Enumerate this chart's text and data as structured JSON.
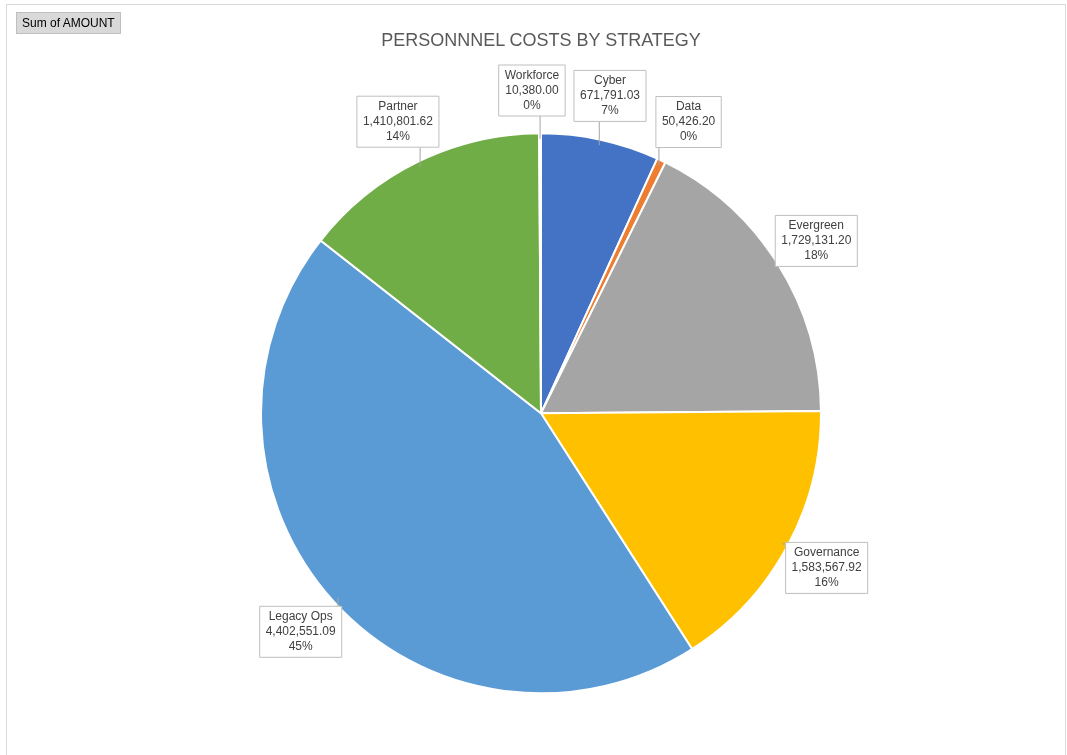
{
  "chart_data": {
    "type": "pie",
    "title": "PERSONNNEL COSTS BY STRATEGY",
    "categories": [
      "Cyber",
      "Data",
      "Evergreen",
      "Governance",
      "Legacy Ops",
      "Partner",
      "Workforce"
    ],
    "values": [
      671791.03,
      50426.2,
      1729131.2,
      1583567.92,
      4402551.09,
      1410801.62,
      10380.0
    ],
    "colors": [
      "#4472c4",
      "#ed7d31",
      "#a5a5a5",
      "#ffc000",
      "#5b9bd5",
      "#70ad47",
      "#264478"
    ],
    "value_labels": [
      "671,791.03\n7%",
      "50,426.20\n0%",
      "1,729,131.20\n18%",
      "1,583,567.92\n16%",
      "4,402,551.09\n45%",
      "1,410,801.62\n14%",
      "10,380.00\n0%"
    ],
    "legend": false,
    "annotations": [
      "Sum of AMOUNT"
    ]
  }
}
